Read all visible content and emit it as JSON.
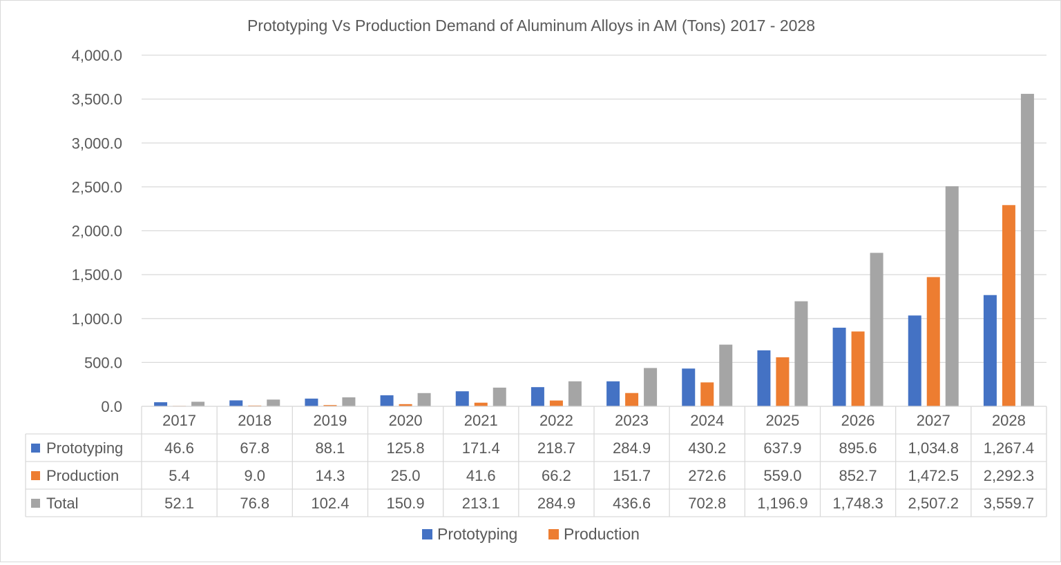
{
  "chart_data": {
    "type": "bar",
    "title": "Prototyping Vs Production Demand of Aluminum Alloys in AM (Tons) 2017 - 2028",
    "categories": [
      "2017",
      "2018",
      "2019",
      "2020",
      "2021",
      "2022",
      "2023",
      "2024",
      "2025",
      "2026",
      "2027",
      "2028"
    ],
    "ylim": [
      0,
      4000
    ],
    "y_ticks": [
      "0.0",
      "500.0",
      "1,000.0",
      "1,500.0",
      "2,000.0",
      "2,500.0",
      "3,000.0",
      "3,500.0",
      "4,000.0"
    ],
    "grid": true,
    "legend_position": "bottom",
    "series": [
      {
        "name": "Prototyping",
        "color": "#4472c4",
        "values": [
          46.6,
          67.8,
          88.1,
          125.8,
          171.4,
          218.7,
          284.9,
          430.2,
          637.9,
          895.6,
          1034.8,
          1267.4
        ],
        "labels": [
          "46.6",
          "67.8",
          "88.1",
          "125.8",
          "171.4",
          "218.7",
          "284.9",
          "430.2",
          "637.9",
          "895.6",
          "1,034.8",
          "1,267.4"
        ]
      },
      {
        "name": "Production",
        "color": "#ed7d31",
        "values": [
          5.4,
          9.0,
          14.3,
          25.0,
          41.6,
          66.2,
          151.7,
          272.6,
          559.0,
          852.7,
          1472.5,
          2292.3
        ],
        "labels": [
          "5.4",
          "9.0",
          "14.3",
          "25.0",
          "41.6",
          "66.2",
          "151.7",
          "272.6",
          "559.0",
          "852.7",
          "1,472.5",
          "2,292.3"
        ]
      },
      {
        "name": "Total",
        "color": "#a5a5a5",
        "values": [
          52.1,
          76.8,
          102.4,
          150.9,
          213.1,
          284.9,
          436.6,
          702.8,
          1196.9,
          1748.3,
          2507.2,
          3559.7
        ],
        "labels": [
          "52.1",
          "76.8",
          "102.4",
          "150.9",
          "213.1",
          "284.9",
          "436.6",
          "702.8",
          "1,196.9",
          "1,748.3",
          "2,507.2",
          "3,559.7"
        ]
      }
    ],
    "legend_items": [
      "Prototyping",
      "Production"
    ]
  }
}
